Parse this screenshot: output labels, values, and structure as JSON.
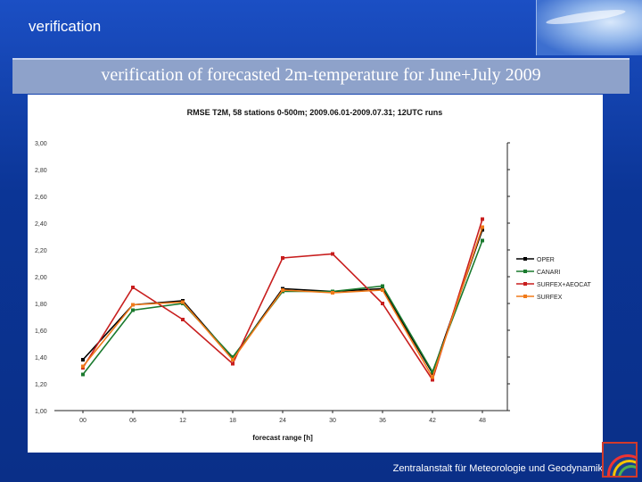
{
  "header": {
    "section_title": "verification",
    "banner_title": "verification of forecasted 2m-temperature for June+July 2009"
  },
  "footer": {
    "institution": "Zentralanstalt für Meteorologie und Geodynamik"
  },
  "chart_data": {
    "type": "line",
    "title": "RMSE T2M, 58 stations 0-500m; 2009.06.01-2009.07.31; 12UTC runs",
    "xlabel": "forecast range [h]",
    "ylabel": "",
    "categories": [
      "00",
      "06",
      "12",
      "18",
      "24",
      "30",
      "36",
      "42",
      "48"
    ],
    "ytick_labels": [
      "3,00",
      "2,80",
      "2,60",
      "2,40",
      "2,20",
      "2,00",
      "1,80",
      "1,60",
      "1,40",
      "1,20",
      "1,00"
    ],
    "ylim": [
      1.0,
      3.0
    ],
    "grid": false,
    "legend_position": "right",
    "series": [
      {
        "name": "OPER",
        "color": "#000000",
        "values": [
          1.38,
          1.79,
          1.82,
          1.39,
          1.91,
          1.89,
          1.91,
          1.28,
          2.35
        ]
      },
      {
        "name": "CANARI",
        "color": "#1a7a2e",
        "values": [
          1.27,
          1.75,
          1.8,
          1.4,
          1.89,
          1.89,
          1.93,
          1.29,
          2.27
        ]
      },
      {
        "name": "SURFEX+AEOCAT",
        "color": "#c81e1e",
        "values": [
          1.32,
          1.92,
          1.68,
          1.35,
          2.14,
          2.17,
          1.8,
          1.23,
          2.43
        ]
      },
      {
        "name": "SURFEX",
        "color": "#f07a1a",
        "values": [
          1.33,
          1.79,
          1.81,
          1.38,
          1.9,
          1.88,
          1.9,
          1.25,
          2.37
        ]
      }
    ]
  }
}
